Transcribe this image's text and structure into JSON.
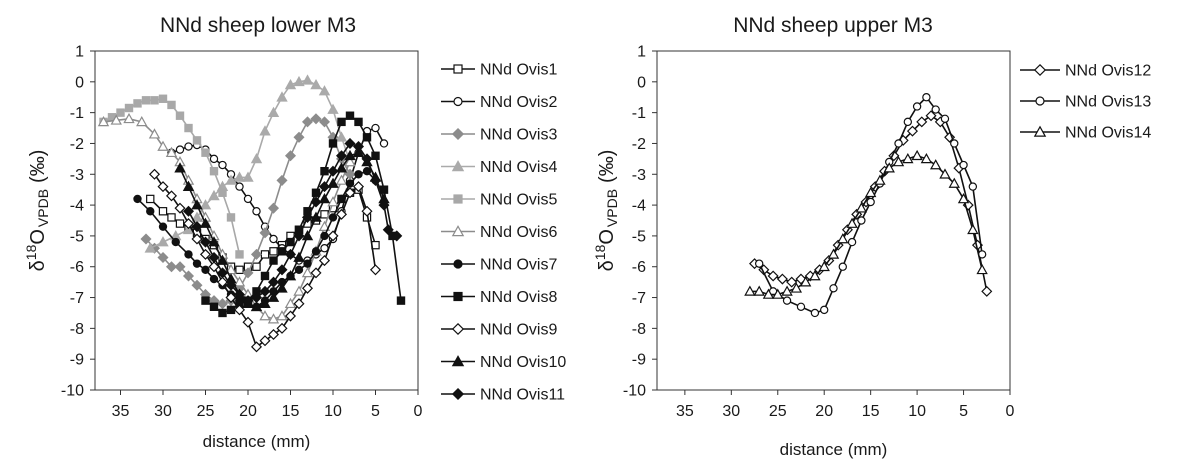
{
  "colors": {
    "black": "#111111",
    "gray": "#999999",
    "white": "#ffffff"
  },
  "chart_data": [
    {
      "type": "line",
      "title": "NNd sheep lower M3",
      "xlabel": "distance (mm)",
      "ylabel": {
        "delta": "δ",
        "sup": "18",
        "main": "O",
        "sub": "VPDB",
        "unit": "(‰)"
      },
      "xlim": [
        38,
        0
      ],
      "ylim": [
        -10,
        1
      ],
      "xticks": [
        35,
        30,
        25,
        20,
        15,
        10,
        5,
        0
      ],
      "yticks": [
        1,
        0,
        -1,
        -2,
        -3,
        -4,
        -5,
        -6,
        -7,
        -8,
        -9,
        -10
      ],
      "grid": false,
      "legend": "right",
      "series": [
        {
          "name": "NNd Ovis1",
          "marker": "square",
          "fill": "#ffffff",
          "line": "#111111",
          "x": [
            31.5,
            30,
            29,
            28,
            27,
            26,
            25,
            24,
            23,
            22,
            21,
            20,
            19,
            18,
            17,
            16,
            15,
            14,
            13,
            12,
            11,
            10,
            9,
            8,
            7,
            6,
            5
          ],
          "y": [
            -3.8,
            -4.2,
            -4.4,
            -4.6,
            -4.7,
            -4.9,
            -5.1,
            -5.3,
            -5.7,
            -6.0,
            -6.1,
            -6.0,
            -6.0,
            -5.6,
            -5.5,
            -5.3,
            -5.0,
            -4.8,
            -4.6,
            -4.5,
            -4.3,
            -4.1,
            -3.8,
            -3.6,
            -3.5,
            -4.4,
            -5.3
          ]
        },
        {
          "name": "NNd Ovis2",
          "marker": "circle",
          "fill": "#ffffff",
          "line": "#111111",
          "x": [
            29,
            28,
            27,
            26,
            25,
            24,
            23,
            22,
            21,
            20,
            19,
            18,
            17,
            16,
            15,
            14,
            13,
            12,
            11,
            10,
            9,
            8,
            7,
            6,
            5,
            4
          ],
          "y": [
            -2.3,
            -2.2,
            -2.1,
            -2.05,
            -2.2,
            -2.5,
            -2.7,
            -3.0,
            -3.4,
            -3.8,
            -4.2,
            -4.7,
            -5.1,
            -5.4,
            -5.6,
            -5.8,
            -5.8,
            -5.6,
            -5.4,
            -5.1,
            -4.2,
            -3.2,
            -2.3,
            -1.6,
            -1.5,
            -2.0
          ]
        },
        {
          "name": "NNd Ovis3",
          "marker": "diamond",
          "fill": "#8c8c8c",
          "line": "#8c8c8c",
          "x": [
            32,
            31,
            30,
            29,
            28,
            27,
            26,
            25,
            24,
            23,
            22,
            21,
            20,
            19,
            18,
            17,
            16,
            15,
            14,
            13,
            12,
            11,
            10,
            9,
            8
          ],
          "y": [
            -5.1,
            -5.4,
            -5.7,
            -6.0,
            -6.0,
            -6.3,
            -6.6,
            -6.9,
            -7.1,
            -7.2,
            -7.1,
            -6.7,
            -6.2,
            -5.6,
            -4.9,
            -4.1,
            -3.2,
            -2.4,
            -1.8,
            -1.3,
            -1.2,
            -1.3,
            -1.8,
            -2.5,
            -3.0
          ]
        },
        {
          "name": "NNd Ovis4",
          "marker": "triangle",
          "fill": "#aaaaaa",
          "line": "#aaaaaa",
          "x": [
            31.5,
            30,
            28.5,
            27,
            26,
            25,
            24,
            23,
            22,
            21,
            20,
            19,
            18,
            17,
            16,
            15,
            14,
            13,
            12,
            11,
            10,
            9,
            8
          ],
          "y": [
            -5.4,
            -5.2,
            -5.0,
            -4.8,
            -4.4,
            -4.0,
            -3.7,
            -3.4,
            -3.2,
            -3.1,
            -3.1,
            -2.5,
            -1.6,
            -1.0,
            -0.5,
            -0.1,
            0.0,
            0.05,
            -0.1,
            -0.3,
            -0.9,
            -1.8,
            -2.6
          ]
        },
        {
          "name": "NNd Ovis5",
          "marker": "square",
          "fill": "#a8a8a8",
          "line": "#a8a8a8",
          "x": [
            37,
            36,
            35,
            34,
            33,
            32,
            31,
            30,
            29,
            28,
            27,
            26,
            25,
            24,
            23,
            22,
            21
          ],
          "y": [
            -1.3,
            -1.15,
            -1.0,
            -0.85,
            -0.7,
            -0.6,
            -0.6,
            -0.55,
            -0.75,
            -1.1,
            -1.5,
            -1.9,
            -2.3,
            -2.9,
            -3.6,
            -4.4,
            -5.6
          ]
        },
        {
          "name": "NNd Ovis6",
          "marker": "triangle",
          "fill": "#ffffff",
          "line": "#8c8c8c",
          "x": [
            37,
            35.5,
            34,
            32.5,
            31,
            30,
            29,
            28,
            27,
            26,
            25,
            24,
            23,
            22,
            21,
            20,
            19,
            18,
            17,
            16,
            15,
            14,
            13,
            12,
            11,
            10,
            9,
            8,
            7
          ],
          "y": [
            -1.3,
            -1.25,
            -1.2,
            -1.3,
            -1.7,
            -2.1,
            -2.3,
            -2.6,
            -3.2,
            -3.8,
            -4.4,
            -5.0,
            -5.6,
            -6.1,
            -6.5,
            -6.9,
            -7.3,
            -7.6,
            -7.7,
            -7.6,
            -7.2,
            -6.8,
            -6.2,
            -5.5,
            -4.7,
            -3.9,
            -3.2,
            -2.6,
            -2.3
          ]
        },
        {
          "name": "NNd Ovis7",
          "marker": "circle",
          "fill": "#111111",
          "line": "#111111",
          "x": [
            33,
            31.5,
            30,
            28.5,
            27,
            26,
            25,
            24,
            23,
            22,
            21,
            20,
            19,
            18,
            17,
            16,
            15,
            14,
            13,
            12,
            11,
            10,
            9,
            8,
            7,
            6,
            5
          ],
          "y": [
            -3.8,
            -4.2,
            -4.7,
            -5.2,
            -5.6,
            -5.9,
            -6.1,
            -6.4,
            -6.6,
            -6.9,
            -7.1,
            -7.2,
            -7.3,
            -7.1,
            -6.8,
            -6.5,
            -6.3,
            -6.1,
            -5.9,
            -5.5,
            -5.0,
            -4.4,
            -3.8,
            -3.3,
            -3.0,
            -2.9,
            -3.2
          ]
        },
        {
          "name": "NNd Ovis8",
          "marker": "square",
          "fill": "#111111",
          "line": "#111111",
          "x": [
            25,
            24,
            23,
            22,
            21,
            20,
            19,
            18,
            17,
            16,
            15,
            14,
            13,
            12,
            11,
            10,
            9,
            8,
            7,
            6,
            5,
            4,
            3,
            2
          ],
          "y": [
            -7.1,
            -7.3,
            -7.5,
            -7.4,
            -7.2,
            -7.1,
            -6.8,
            -6.3,
            -5.8,
            -5.5,
            -5.2,
            -4.8,
            -4.2,
            -3.6,
            -2.9,
            -2.0,
            -1.3,
            -1.1,
            -1.3,
            -1.8,
            -2.4,
            -3.5,
            -5.0,
            -7.1
          ]
        },
        {
          "name": "NNd Ovis9",
          "marker": "diamond",
          "fill": "#ffffff",
          "line": "#111111",
          "x": [
            31,
            30,
            29,
            28,
            27,
            26,
            25,
            24,
            23,
            22,
            21,
            20,
            19,
            18,
            17,
            16,
            15,
            14,
            13,
            12,
            11,
            10,
            9,
            8,
            7,
            6,
            5
          ],
          "y": [
            -3.0,
            -3.4,
            -3.7,
            -4.1,
            -4.6,
            -5.1,
            -5.6,
            -6.0,
            -6.5,
            -7.0,
            -7.4,
            -7.8,
            -8.6,
            -8.4,
            -8.2,
            -8.0,
            -7.6,
            -7.2,
            -6.7,
            -6.2,
            -5.8,
            -5.0,
            -4.3,
            -3.6,
            -3.4,
            -4.2,
            -6.1
          ]
        },
        {
          "name": "NNd Ovis10",
          "marker": "triangle",
          "fill": "#111111",
          "line": "#111111",
          "x": [
            28,
            27,
            26,
            25,
            24,
            23,
            22,
            21,
            20,
            19,
            18,
            17,
            16,
            15,
            14,
            13,
            12,
            11,
            10,
            9,
            8,
            7,
            6,
            5,
            4
          ],
          "y": [
            -2.8,
            -3.4,
            -4.0,
            -4.6,
            -5.2,
            -5.8,
            -6.4,
            -6.9,
            -7.2,
            -7.3,
            -7.2,
            -7.0,
            -6.7,
            -6.3,
            -5.7,
            -5.0,
            -4.4,
            -3.8,
            -3.3,
            -2.8,
            -2.4,
            -2.3,
            -2.6,
            -3.1,
            -3.8
          ]
        },
        {
          "name": "NNd Ovis11",
          "marker": "diamond",
          "fill": "#111111",
          "line": "#111111",
          "x": [
            27,
            26,
            25,
            24,
            23,
            22,
            21,
            20,
            19,
            18,
            17,
            16,
            15,
            14,
            13,
            12,
            11,
            10,
            9,
            8,
            7,
            6,
            5,
            4,
            3.5,
            2.5
          ],
          "y": [
            -4.2,
            -4.7,
            -5.2,
            -5.7,
            -6.2,
            -6.6,
            -6.9,
            -7.1,
            -7.0,
            -6.8,
            -6.5,
            -6.1,
            -5.6,
            -5.0,
            -4.4,
            -3.9,
            -3.4,
            -2.9,
            -2.4,
            -2.0,
            -2.1,
            -2.5,
            -3.2,
            -4.0,
            -4.8,
            -5.0
          ]
        }
      ]
    },
    {
      "type": "line",
      "title": "NNd sheep upper M3",
      "xlabel": "distance (mm)",
      "ylabel": {
        "delta": "δ",
        "sup": "18",
        "main": "O",
        "sub": "VPDB",
        "unit": "(‰)"
      },
      "xlim": [
        38,
        0
      ],
      "ylim": [
        -10,
        1
      ],
      "xticks": [
        35,
        30,
        25,
        20,
        15,
        10,
        5,
        0
      ],
      "yticks": [
        1,
        0,
        -1,
        -2,
        -3,
        -4,
        -5,
        -6,
        -7,
        -8,
        -9,
        -10
      ],
      "grid": false,
      "legend": "right",
      "series": [
        {
          "name": "NNd Ovis12",
          "marker": "diamond",
          "fill": "#ffffff",
          "line": "#111111",
          "x": [
            27.5,
            26.5,
            25.5,
            24.5,
            23.5,
            22.5,
            21.5,
            20.5,
            19.5,
            18.5,
            17.5,
            16.5,
            15.5,
            14.5,
            13.5,
            12.5,
            11.5,
            10.5,
            9.5,
            8.5,
            7.5,
            6.5,
            5.5,
            4.5,
            3.5,
            2.5
          ],
          "y": [
            -5.9,
            -6.1,
            -6.3,
            -6.4,
            -6.5,
            -6.4,
            -6.3,
            -6.1,
            -5.8,
            -5.3,
            -4.8,
            -4.3,
            -3.9,
            -3.4,
            -2.9,
            -2.4,
            -1.9,
            -1.6,
            -1.3,
            -1.1,
            -1.3,
            -1.8,
            -2.8,
            -4.0,
            -5.3,
            -6.8
          ]
        },
        {
          "name": "NNd Ovis13",
          "marker": "circle",
          "fill": "#ffffff",
          "line": "#111111",
          "x": [
            27,
            25.5,
            24,
            22.5,
            21,
            20,
            19,
            18,
            17,
            16,
            15,
            14,
            13,
            12,
            11,
            10,
            9,
            8,
            7,
            6,
            5,
            4,
            3
          ],
          "y": [
            -5.9,
            -6.8,
            -7.1,
            -7.3,
            -7.5,
            -7.4,
            -6.7,
            -6.0,
            -5.2,
            -4.5,
            -3.9,
            -3.3,
            -2.6,
            -2.0,
            -1.3,
            -0.8,
            -0.5,
            -0.9,
            -1.2,
            -2.0,
            -2.7,
            -3.4,
            -5.6
          ]
        },
        {
          "name": "NNd Ovis14",
          "marker": "triangle",
          "fill": "#ffffff",
          "line": "#111111",
          "x": [
            28,
            27,
            26,
            25,
            24,
            23,
            22,
            21,
            20,
            19,
            18,
            17,
            16,
            15,
            14,
            13,
            12,
            11,
            10,
            9,
            8,
            7,
            6,
            5,
            4,
            3
          ],
          "y": [
            -6.8,
            -6.8,
            -6.9,
            -6.9,
            -6.8,
            -6.7,
            -6.5,
            -6.3,
            -6.0,
            -5.6,
            -5.1,
            -4.6,
            -4.1,
            -3.6,
            -3.2,
            -2.8,
            -2.6,
            -2.5,
            -2.4,
            -2.5,
            -2.7,
            -3.0,
            -3.3,
            -3.8,
            -4.8,
            -6.1
          ]
        }
      ]
    }
  ]
}
